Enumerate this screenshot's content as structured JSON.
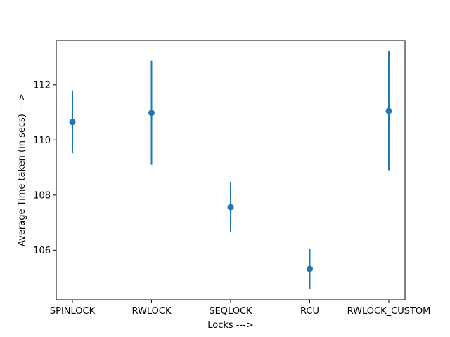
{
  "chart_data": {
    "type": "scatter",
    "title": "",
    "xlabel": "Locks --->",
    "ylabel": "Average Time taken (in secs) --->",
    "categories": [
      "SPINLOCK",
      "RWLOCK",
      "SEQLOCK",
      "RCU",
      "RWLOCK_CUSTOM"
    ],
    "series": [
      {
        "values": [
          110.65,
          110.98,
          107.56,
          105.32,
          111.05
        ],
        "error_low": [
          109.52,
          109.1,
          106.65,
          104.6,
          108.9
        ],
        "error_high": [
          111.8,
          112.87,
          108.48,
          106.05,
          113.22
        ]
      }
    ],
    "yticks": [
      106,
      108,
      110,
      112
    ],
    "ytick_labels": [
      "106",
      "108",
      "110",
      "112"
    ],
    "ylim": [
      104.2,
      113.6
    ],
    "grid": false,
    "color": "#1f77b4"
  }
}
